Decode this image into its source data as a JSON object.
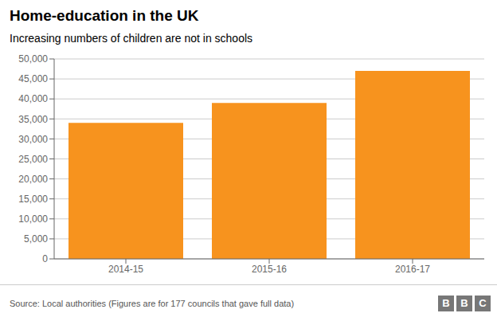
{
  "chart_data": {
    "type": "bar",
    "title": "Home-education in the UK",
    "subtitle": "Increasing numbers of children are not in schools",
    "categories": [
      "2014-15",
      "2015-16",
      "2016-17"
    ],
    "values": [
      34000,
      39000,
      47000
    ],
    "color": "#F7931E",
    "ylim": [
      0,
      50000
    ],
    "yticks": [
      0,
      {
        "value": 5000,
        "label": "5,000"
      },
      {
        "value": 10000,
        "label": "10,000"
      },
      {
        "value": 15000,
        "label": "15,000"
      },
      {
        "value": 20000,
        "label": "20,000"
      },
      {
        "value": 25000,
        "label": "25,000"
      },
      {
        "value": 30000,
        "label": "30,000"
      },
      {
        "value": 35000,
        "label": "35,000"
      },
      {
        "value": 40000,
        "label": "40,000"
      },
      {
        "value": 45000,
        "label": "45,000"
      },
      {
        "value": 50000,
        "label": "50,000"
      }
    ],
    "grid": true,
    "source": "Source: Local authorities (Figures are for 177 councils that gave full data)",
    "annotations": [
      "B",
      "B",
      "C"
    ]
  }
}
